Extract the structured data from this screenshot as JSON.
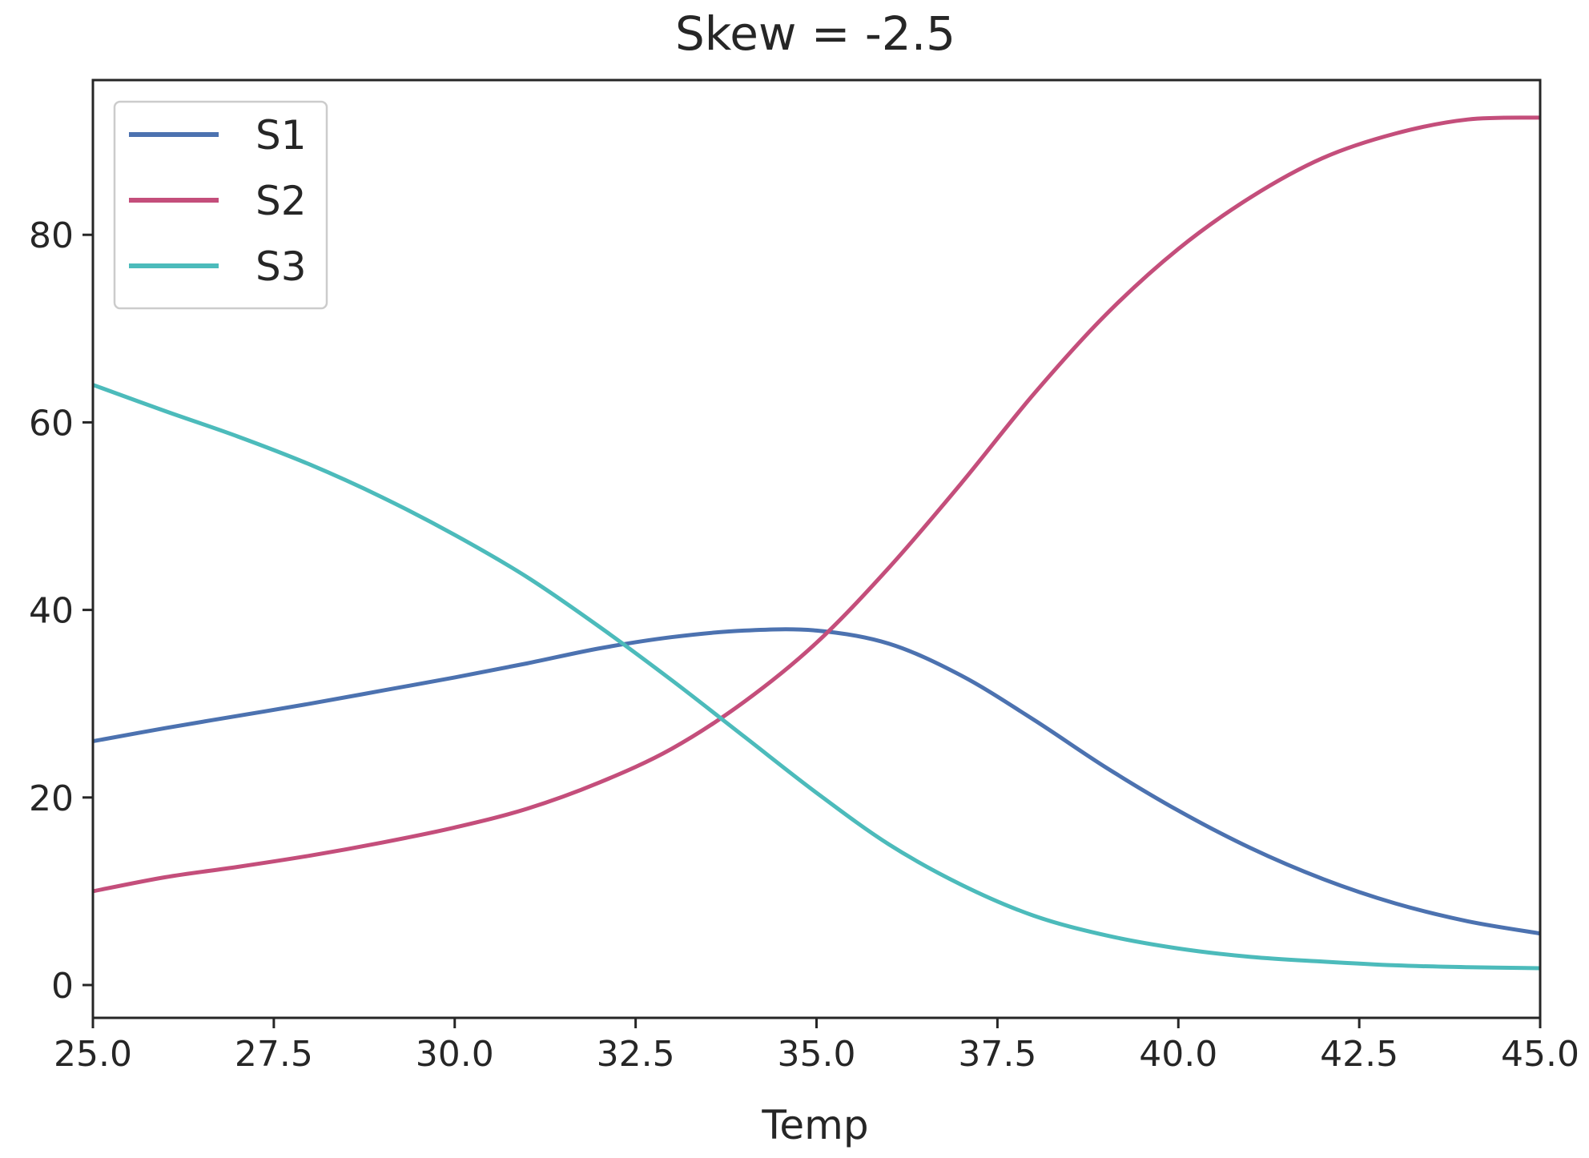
{
  "chart_data": {
    "type": "line",
    "title": "Skew = -2.5",
    "xlabel": "Temp",
    "ylabel": "",
    "xlim": [
      25.0,
      45.0
    ],
    "ylim": [
      -3.5,
      96.5
    ],
    "x_ticks": [
      "25.0",
      "27.5",
      "30.0",
      "32.5",
      "35.0",
      "37.5",
      "40.0",
      "42.5",
      "45.0"
    ],
    "y_ticks": [
      "0",
      "20",
      "40",
      "60",
      "80"
    ],
    "grid": false,
    "legend_position": "top-left",
    "x": [
      25,
      26,
      27,
      28,
      29,
      30,
      31,
      32,
      33,
      34,
      35,
      36,
      37,
      38,
      39,
      40,
      41,
      42,
      43,
      44,
      45
    ],
    "series": [
      {
        "name": "S1",
        "color": "#4c72b0",
        "values": [
          26.0,
          27.4,
          28.7,
          30.0,
          31.4,
          32.8,
          34.3,
          35.9,
          37.1,
          37.8,
          37.8,
          36.4,
          33.0,
          28.3,
          23.2,
          18.6,
          14.6,
          11.3,
          8.7,
          6.8,
          5.5
        ]
      },
      {
        "name": "S2",
        "color": "#c44e7b",
        "values": [
          10.0,
          11.5,
          12.6,
          13.8,
          15.2,
          16.8,
          18.8,
          21.6,
          25.2,
          30.2,
          36.5,
          44.5,
          53.5,
          63.0,
          71.5,
          78.5,
          84.0,
          88.2,
          90.8,
          92.3,
          92.5
        ]
      },
      {
        "name": "S3",
        "color": "#4cbbbb",
        "values": [
          64.0,
          61.2,
          58.5,
          55.5,
          52.0,
          48.0,
          43.5,
          38.2,
          32.5,
          26.5,
          20.5,
          15.0,
          10.7,
          7.4,
          5.3,
          3.9,
          3.0,
          2.5,
          2.1,
          1.9,
          1.8
        ]
      }
    ]
  }
}
